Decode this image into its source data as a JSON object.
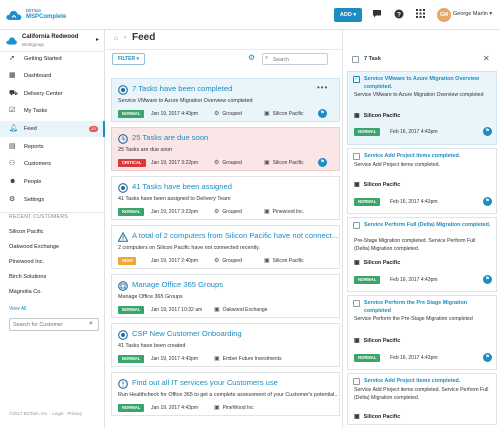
{
  "brand": {
    "sub": "BitTitan",
    "name": "MSPComplete"
  },
  "topbar": {
    "add_label": "ADD ▾",
    "user_initials": "GM",
    "user_name": "George Marlin",
    "chat_icon": "chat-icon",
    "help_icon": "help-icon",
    "apps_icon": "apps-grid-icon"
  },
  "sidebar": {
    "org_name": "California Redwood",
    "org_sub": "Workgroup",
    "items": [
      {
        "label": "Getting Started",
        "icon": "rocket-icon"
      },
      {
        "label": "Dashboard",
        "icon": "dashboard-icon"
      },
      {
        "label": "Delivery Center",
        "icon": "truck-icon"
      },
      {
        "label": "My Tasks",
        "icon": "tasks-icon"
      },
      {
        "label": "Feed",
        "icon": "bell-icon",
        "count": "20"
      },
      {
        "label": "Reports",
        "icon": "reports-icon"
      },
      {
        "label": "Customers",
        "icon": "customers-icon"
      },
      {
        "label": "People",
        "icon": "people-icon"
      },
      {
        "label": "Settings",
        "icon": "gear-icon"
      }
    ],
    "recent_heading": "RECENT CUSTOMERS",
    "recent": [
      "Silicon Pacific",
      "Oakwood Exchange",
      "Pinewood Inc.",
      "Birch Solutions",
      "Magnolia Co."
    ],
    "view_all": "View All",
    "search_placeholder": "Search for Customer",
    "copyright": "©2017 BitTitan, Inc. · Legal · Privacy"
  },
  "feed": {
    "title": "Feed",
    "filter_label": "FILTER ▾",
    "search_placeholder": "Search",
    "cards": [
      {
        "title": "7 Tasks have been completed",
        "desc": "Service VMware to Azure Migration Overview completed",
        "badge": "NORMAL",
        "date": "Jan 19, 2017 4:43pm",
        "group": "Grouped",
        "customer": "Silicon Pacific"
      },
      {
        "title": "25 Tasks are due soon",
        "desc": "25 Tasks are due soon",
        "badge": "CRITICAL",
        "date": "Jan 19, 2017 3:22pm",
        "group": "Grouped",
        "customer": "Silicon Pacific"
      },
      {
        "title": "41 Tasks have been assigned",
        "desc": "41 Tasks have been assigned to Delivery Team",
        "badge": "NORMAL",
        "date": "Jan 19, 2017 3:22pm",
        "group": "Grouped",
        "customer": "Pinewood Inc."
      },
      {
        "title": "A total of 2 computers from Silicon Pacific have not connect...",
        "desc": "2 computers on Silicon Pacific have not connected recently.",
        "badge": "HIGH",
        "date": "Jan 19, 2017 2:40pm",
        "group": "Grouped",
        "customer": "Silicon Pacific"
      },
      {
        "title": "Manage Office 365 Groups",
        "desc": "Manage Office 365 Groups",
        "badge": "NORMAL",
        "date": "Jan 19, 2017 10:32 am",
        "customer": "Oakwood Exchange"
      },
      {
        "title": "CSP New Customer Onboarding",
        "desc": "41 Tasks have been created",
        "badge": "NORMAL",
        "date": "Jan 19, 2017 4:43pm",
        "customer": "Ember Future Investments"
      },
      {
        "title": "Find out all IT services your Customers use",
        "desc": "Run Healthcheck for Office 365 to get a complete assessment of your Customer's potential...",
        "badge": "NORMAL",
        "date": "Jan 19, 2017 4:43pm",
        "customer": "PineWood Inc"
      }
    ]
  },
  "tasks": {
    "count_label": "7 Task",
    "items": [
      {
        "title": "Service VMware to Azure Migration Overview completed.",
        "desc": "Service VMware to Azure Migration Overview completed",
        "customer": "Silicon Pacific",
        "badge": "NORMAL",
        "date": "Feb 16, 2017 4:43pm"
      },
      {
        "title": "Service Add Project items completed.",
        "desc": "Service Add Project items completed.",
        "customer": "Silicon Pacific",
        "badge": "NORMAL",
        "date": "Feb 16, 2017 4:43pm"
      },
      {
        "title": "Service Perform Full (Delta) Migration completed.",
        "desc": "Pre-Stage Migration completed. Service Perform Full (Delta) Migration completed.",
        "customer": "Silicon Pacific",
        "badge": "NORMAL",
        "date": "Feb 16, 2017 4:43pm"
      },
      {
        "title": "Service Perform the Pre Stage Migration completed",
        "desc": "Service Perform the Pre-Stage Migration completed",
        "customer": "Silicon Pacific",
        "badge": "NORMAL",
        "date": "Feb 16, 2017 4:43pm"
      },
      {
        "title": "Service Add Project items completed.",
        "desc": "Service Add Project items completed. Service Perform Full (Delta) Migration completed.",
        "customer": "Silicon Pacific",
        "badge": "NORMAL",
        "date": "Feb 16, 2017 4:43pm"
      }
    ]
  },
  "colors": {
    "accent": "#1c8dc2",
    "normal": "#36a66a",
    "critical": "#d83a3a",
    "high": "#f0a830",
    "highlight_blue": "#eaf4fb",
    "highlight_red": "#fae6e6"
  }
}
